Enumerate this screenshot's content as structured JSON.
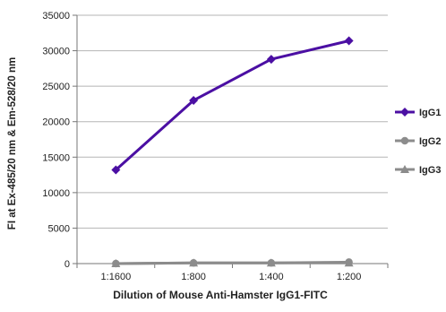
{
  "chart_data": {
    "type": "line",
    "title": "",
    "xlabel": "Dilution of Mouse Anti-Hamster IgG1-FITC",
    "ylabel": "FI at Ex-485/20 nm & Em-528/20 nm",
    "categories": [
      "1:1600",
      "1:800",
      "1:400",
      "1:200"
    ],
    "ylim": [
      0,
      35000
    ],
    "yticks": [
      0,
      5000,
      10000,
      15000,
      20000,
      25000,
      30000,
      35000
    ],
    "grid": "horizontal",
    "legend_position": "right",
    "series": [
      {
        "name": "IgG1",
        "values": [
          13200,
          23000,
          28800,
          31400
        ],
        "color": "#4b0fa3",
        "marker": "diamond"
      },
      {
        "name": "IgG2",
        "values": [
          0,
          100,
          100,
          200
        ],
        "color": "#8c8c8c",
        "marker": "circle"
      },
      {
        "name": "IgG3",
        "values": [
          0,
          100,
          100,
          100
        ],
        "color": "#8c8c8c",
        "marker": "triangle"
      }
    ]
  }
}
